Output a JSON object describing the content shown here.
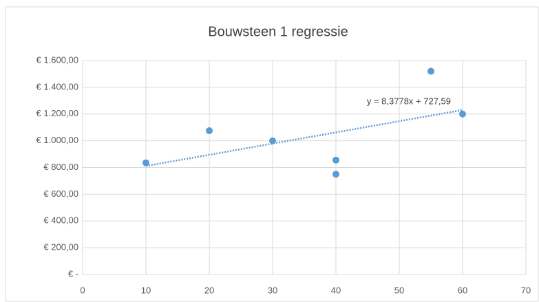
{
  "chart_data": {
    "type": "scatter",
    "title": "Bouwsteen 1 regressie",
    "x": [
      10,
      20,
      30,
      40,
      40,
      55,
      60
    ],
    "values": [
      835,
      1075,
      1000,
      855,
      750,
      1520,
      1200
    ],
    "color": "#5b9bd5",
    "xlim": [
      0,
      70
    ],
    "xticks": [
      0,
      10,
      20,
      30,
      40,
      50,
      60,
      70
    ],
    "ylim": [
      0,
      1600
    ],
    "yticks": [
      {
        "value": 0,
        "label": "€ -"
      },
      {
        "value": 200,
        "label": "€ 200,00"
      },
      {
        "value": 400,
        "label": "€ 400,00"
      },
      {
        "value": 600,
        "label": "€ 600,00"
      },
      {
        "value": 800,
        "label": "€ 800,00"
      },
      {
        "value": 1000,
        "label": "€ 1.000,00"
      },
      {
        "value": 1200,
        "label": "€ 1.200,00"
      },
      {
        "value": 1400,
        "label": "€ 1.400,00"
      },
      {
        "value": 1600,
        "label": "€ 1.600,00"
      }
    ],
    "grid": true,
    "trendline": {
      "slope": 8.3778,
      "intercept": 727.59,
      "label": "y = 8,3778x + 727,59"
    }
  }
}
